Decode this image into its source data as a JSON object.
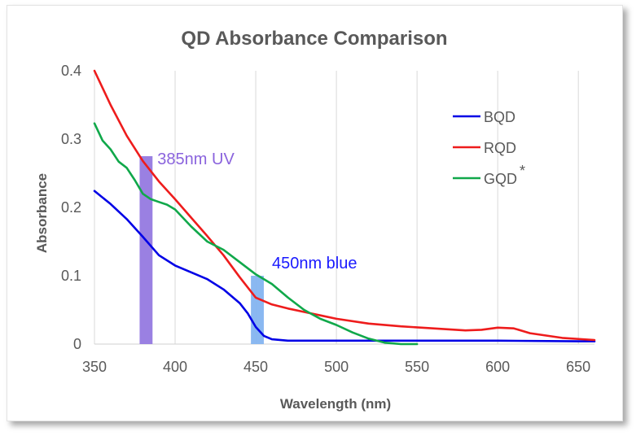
{
  "chart_data": {
    "type": "line",
    "title": "QD Absorbance Comparison",
    "xlabel": "Wavelength (nm)",
    "ylabel": "Absorbance",
    "xlim": [
      350,
      660
    ],
    "ylim": [
      0,
      0.4
    ],
    "xticks": [
      350,
      400,
      450,
      500,
      550,
      600,
      650
    ],
    "yticks": [
      0,
      0.1,
      0.2,
      0.3,
      0.4
    ],
    "ytick_labels": [
      "0",
      "0.1",
      "0.2",
      "0.3",
      "0.4"
    ],
    "grid": "vertical",
    "legend_position": "right",
    "series": [
      {
        "name": "BQD",
        "color": "#0000e6",
        "x": [
          350,
          360,
          370,
          380,
          390,
          400,
          410,
          420,
          430,
          440,
          445,
          450,
          455,
          460,
          470,
          500,
          550,
          600,
          650,
          660
        ],
        "y": [
          0.224,
          0.205,
          0.183,
          0.157,
          0.13,
          0.115,
          0.105,
          0.095,
          0.08,
          0.06,
          0.045,
          0.025,
          0.012,
          0.007,
          0.005,
          0.005,
          0.005,
          0.005,
          0.004,
          0.004
        ]
      },
      {
        "name": "RQD",
        "color": "#ee1c1c",
        "x": [
          350,
          360,
          370,
          380,
          390,
          400,
          410,
          420,
          430,
          440,
          450,
          460,
          470,
          480,
          490,
          500,
          520,
          540,
          560,
          580,
          590,
          600,
          610,
          620,
          640,
          660
        ],
        "y": [
          0.4,
          0.35,
          0.305,
          0.268,
          0.238,
          0.212,
          0.185,
          0.158,
          0.13,
          0.098,
          0.068,
          0.058,
          0.052,
          0.047,
          0.042,
          0.037,
          0.03,
          0.026,
          0.023,
          0.02,
          0.021,
          0.024,
          0.023,
          0.016,
          0.009,
          0.006
        ]
      },
      {
        "name": "GQD",
        "color": "#10a84a",
        "x": [
          350,
          355,
          360,
          365,
          370,
          375,
          380,
          385,
          390,
          395,
          400,
          410,
          420,
          430,
          440,
          450,
          460,
          470,
          480,
          490,
          500,
          510,
          520,
          530,
          540,
          550
        ],
        "y": [
          0.323,
          0.298,
          0.285,
          0.267,
          0.258,
          0.24,
          0.22,
          0.212,
          0.208,
          0.204,
          0.197,
          0.172,
          0.15,
          0.138,
          0.12,
          0.102,
          0.088,
          0.068,
          0.05,
          0.037,
          0.028,
          0.017,
          0.008,
          0.002,
          0.0,
          0.0
        ]
      }
    ],
    "legend": [
      {
        "label": "BQD",
        "superscript": ""
      },
      {
        "label": "RQD",
        "superscript": ""
      },
      {
        "label": "GQD",
        "superscript": "*"
      }
    ],
    "highlights": [
      {
        "label": "385nm UV",
        "x_from": 378,
        "x_to": 386,
        "y_to": 0.275,
        "color": "#9579e0",
        "text_color": "#8a63dd"
      },
      {
        "label": "450nm blue",
        "x_from": 447,
        "x_to": 455,
        "y_to": 0.1,
        "color": "#84b4f0",
        "text_color": "#1a1aff"
      }
    ]
  }
}
